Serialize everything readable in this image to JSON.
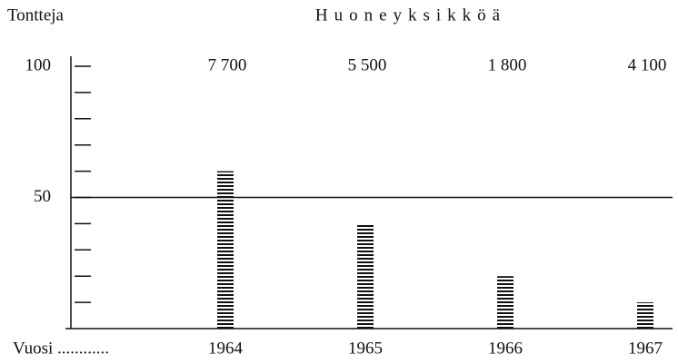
{
  "chart_data": {
    "type": "bar",
    "y_label": "Tontteja",
    "top_label": "Huoneyksikköä",
    "x_label": "Vuosi ............",
    "categories": [
      "1964",
      "1965",
      "1966",
      "1967"
    ],
    "values": [
      60,
      40,
      20,
      10
    ],
    "room_units": [
      7700,
      5500,
      1800,
      4100
    ],
    "room_units_labels": [
      "7 700",
      "5 500",
      "1 800",
      "4 100"
    ],
    "color": "#111111",
    "ylim": [
      0,
      100
    ],
    "yticks": [
      50,
      100
    ],
    "minor_yticks": [
      10,
      20,
      30,
      40,
      60,
      70,
      80,
      90
    ],
    "reference_line": 50
  }
}
